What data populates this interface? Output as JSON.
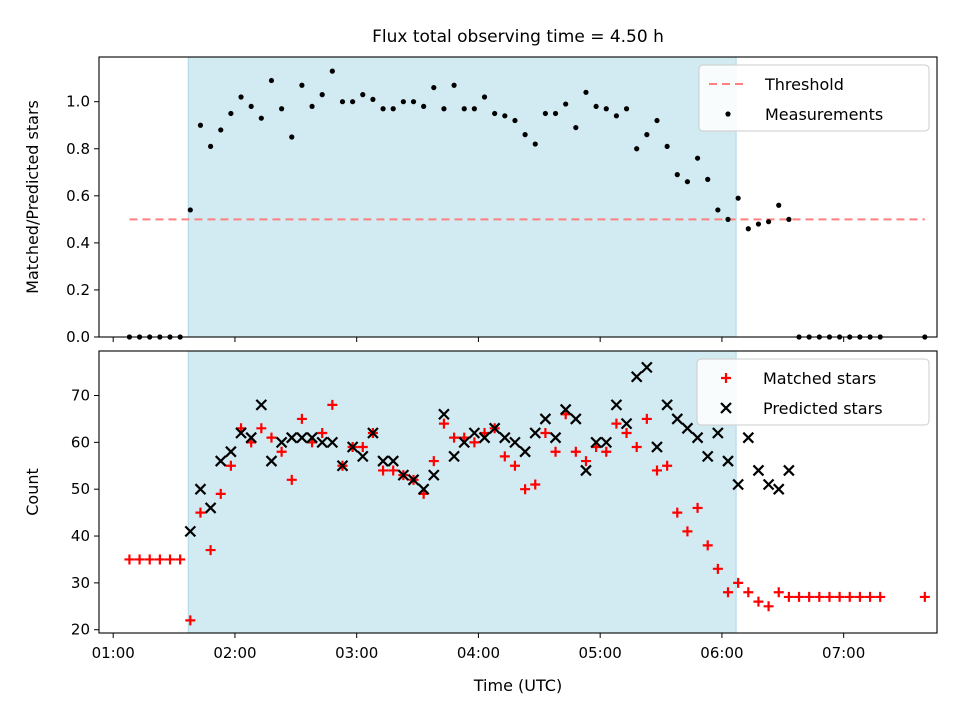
{
  "title": "Flux total observing time = 4.50 h",
  "colors": {
    "threshold": "#ff8080",
    "measurement": "#000000",
    "matched": "#ff0000",
    "predicted": "#000000",
    "shade": "#add8e6"
  },
  "chart_data": [
    {
      "type": "scatter",
      "ylabel": "Matched/Predicted stars",
      "ylim": [
        0,
        1.19
      ],
      "yticks": [
        "0.0",
        "0.2",
        "0.4",
        "0.6",
        "0.8",
        "1.0"
      ],
      "xlim": [
        "00:53",
        "07:46"
      ],
      "shaded_span": [
        "01:37",
        "06:07"
      ],
      "legend": {
        "location": "top-right",
        "entries": [
          "Threshold",
          "Measurements"
        ]
      },
      "threshold": {
        "name": "Threshold",
        "value": 0.5,
        "x": [
          "01:08",
          "07:40"
        ],
        "style": "dashed"
      },
      "series": [
        {
          "name": "Measurements",
          "marker": "dot",
          "x": [
            "01:08",
            "01:13",
            "01:18",
            "01:23",
            "01:28",
            "01:33",
            "01:38",
            "01:43",
            "01:48",
            "01:53",
            "01:58",
            "02:03",
            "02:08",
            "02:13",
            "02:18",
            "02:23",
            "02:28",
            "02:33",
            "02:38",
            "02:43",
            "02:48",
            "02:53",
            "02:58",
            "03:03",
            "03:08",
            "03:13",
            "03:18",
            "03:23",
            "03:28",
            "03:33",
            "03:38",
            "03:43",
            "03:48",
            "03:53",
            "03:58",
            "04:03",
            "04:08",
            "04:13",
            "04:18",
            "04:23",
            "04:28",
            "04:33",
            "04:38",
            "04:43",
            "04:48",
            "04:53",
            "04:58",
            "05:03",
            "05:08",
            "05:13",
            "05:18",
            "05:23",
            "05:28",
            "05:33",
            "05:38",
            "05:43",
            "05:48",
            "05:53",
            "05:58",
            "06:03",
            "06:08",
            "06:13",
            "06:18",
            "06:23",
            "06:28",
            "06:33",
            "06:38",
            "06:43",
            "06:48",
            "06:53",
            "06:58",
            "07:03",
            "07:08",
            "07:13",
            "07:18",
            "07:40"
          ],
          "y": [
            0,
            0,
            0,
            0,
            0,
            0,
            0.54,
            0.9,
            0.81,
            0.88,
            0.95,
            1.02,
            0.98,
            0.93,
            1.09,
            0.97,
            0.85,
            1.07,
            0.98,
            1.03,
            1.13,
            1.0,
            1.0,
            1.03,
            1.01,
            0.97,
            0.97,
            1.0,
            1.0,
            0.98,
            1.06,
            0.97,
            1.07,
            0.97,
            0.97,
            1.02,
            0.95,
            0.94,
            0.92,
            0.86,
            0.82,
            0.95,
            0.95,
            0.99,
            0.89,
            1.04,
            0.98,
            0.97,
            0.94,
            0.97,
            0.8,
            0.86,
            0.92,
            0.81,
            0.69,
            0.66,
            0.76,
            0.67,
            0.54,
            0.5,
            0.59,
            0.46,
            0.48,
            0.49,
            0.56,
            0.5,
            0,
            0,
            0,
            0,
            0,
            0,
            0,
            0,
            0,
            0
          ]
        }
      ]
    },
    {
      "type": "scatter",
      "xlabel": "Time (UTC)",
      "ylabel": "Count",
      "ylim": [
        19.3,
        79.5
      ],
      "yticks": [
        "20",
        "30",
        "40",
        "50",
        "60",
        "70"
      ],
      "xlim": [
        "00:53",
        "07:46"
      ],
      "xticks": [
        "01:00",
        "02:00",
        "03:00",
        "04:00",
        "05:00",
        "06:00",
        "07:00"
      ],
      "shaded_span": [
        "01:37",
        "06:07"
      ],
      "legend": {
        "location": "top-right",
        "entries": [
          "Matched stars",
          "Predicted stars"
        ]
      },
      "series": [
        {
          "name": "Matched stars",
          "marker": "plus",
          "x": [
            "01:08",
            "01:13",
            "01:18",
            "01:23",
            "01:28",
            "01:33",
            "01:38",
            "01:43",
            "01:48",
            "01:53",
            "01:58",
            "02:03",
            "02:08",
            "02:13",
            "02:18",
            "02:23",
            "02:28",
            "02:33",
            "02:38",
            "02:43",
            "02:48",
            "02:53",
            "02:58",
            "03:03",
            "03:08",
            "03:13",
            "03:18",
            "03:23",
            "03:28",
            "03:33",
            "03:38",
            "03:43",
            "03:48",
            "03:53",
            "03:58",
            "04:03",
            "04:08",
            "04:13",
            "04:18",
            "04:23",
            "04:28",
            "04:33",
            "04:38",
            "04:43",
            "04:48",
            "04:53",
            "04:58",
            "05:03",
            "05:08",
            "05:13",
            "05:18",
            "05:23",
            "05:28",
            "05:33",
            "05:38",
            "05:43",
            "05:48",
            "05:53",
            "05:58",
            "06:03",
            "06:08",
            "06:13",
            "06:18",
            "06:23",
            "06:28",
            "06:33",
            "06:38",
            "06:43",
            "06:48",
            "06:53",
            "06:58",
            "07:03",
            "07:08",
            "07:13",
            "07:18",
            "07:40"
          ],
          "y": [
            35,
            35,
            35,
            35,
            35,
            35,
            22,
            45,
            37,
            49,
            55,
            63,
            60,
            63,
            61,
            58,
            52,
            65,
            60,
            62,
            68,
            55,
            59,
            59,
            62,
            54,
            54,
            53,
            52,
            49,
            56,
            64,
            61,
            61,
            60,
            62,
            63,
            57,
            55,
            50,
            51,
            62,
            58,
            66,
            58,
            56,
            59,
            58,
            64,
            62,
            59,
            65,
            54,
            55,
            45,
            41,
            46,
            38,
            33,
            28,
            30,
            28,
            26,
            25,
            28,
            27,
            27,
            27,
            27,
            27,
            27,
            27,
            27,
            27,
            27,
            27
          ]
        },
        {
          "name": "Predicted stars",
          "marker": "x",
          "x": [
            "01:38",
            "01:43",
            "01:48",
            "01:53",
            "01:58",
            "02:03",
            "02:08",
            "02:13",
            "02:18",
            "02:23",
            "02:28",
            "02:33",
            "02:38",
            "02:43",
            "02:48",
            "02:53",
            "02:58",
            "03:03",
            "03:08",
            "03:13",
            "03:18",
            "03:23",
            "03:28",
            "03:33",
            "03:38",
            "03:43",
            "03:48",
            "03:53",
            "03:58",
            "04:03",
            "04:08",
            "04:13",
            "04:18",
            "04:23",
            "04:28",
            "04:33",
            "04:38",
            "04:43",
            "04:48",
            "04:53",
            "04:58",
            "05:03",
            "05:08",
            "05:13",
            "05:18",
            "05:23",
            "05:28",
            "05:33",
            "05:38",
            "05:43",
            "05:48",
            "05:53",
            "05:58",
            "06:03",
            "06:08",
            "06:13",
            "06:18",
            "06:23",
            "06:28",
            "06:33"
          ],
          "y": [
            41,
            50,
            46,
            56,
            58,
            62,
            61,
            68,
            56,
            60,
            61,
            61,
            61,
            60,
            60,
            55,
            59,
            57,
            62,
            56,
            56,
            53,
            52,
            50,
            53,
            66,
            57,
            60,
            62,
            61,
            63,
            61,
            60,
            58,
            62,
            65,
            61,
            67,
            65,
            54,
            60,
            60,
            68,
            64,
            74,
            76,
            59,
            68,
            65,
            63,
            61,
            57,
            62,
            56,
            51,
            61,
            54,
            51,
            50,
            54
          ]
        }
      ]
    }
  ]
}
